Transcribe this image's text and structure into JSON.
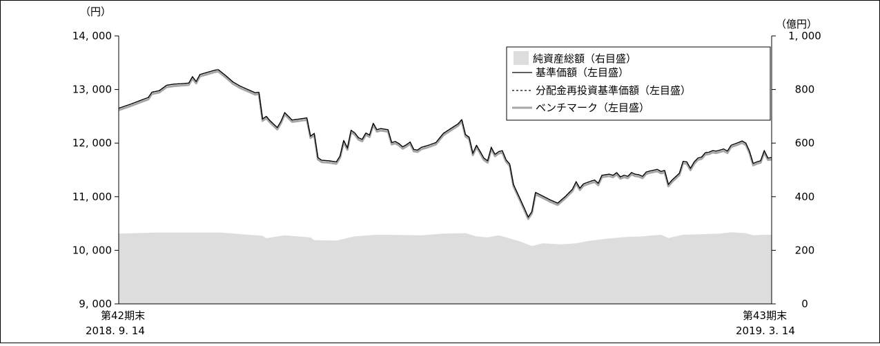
{
  "chart_data": {
    "type": "line",
    "left_axis": {
      "unit": "（円）",
      "min": 9000,
      "max": 14000,
      "ticks": [
        9000,
        10000,
        11000,
        12000,
        13000,
        14000
      ],
      "tick_labels": [
        "9, 000",
        "10, 000",
        "11, 000",
        "12, 000",
        "13, 000",
        "14, 000"
      ]
    },
    "right_axis": {
      "unit": "（億円）",
      "min": 0,
      "max": 1000,
      "ticks": [
        0,
        200,
        400,
        600,
        800,
        1000
      ],
      "tick_labels": [
        "0",
        "200",
        "400",
        "600",
        "800",
        "1, 000"
      ]
    },
    "x_axis": {
      "start": {
        "line1": "第42期末",
        "line2": "2018. 9. 14"
      },
      "end": {
        "line1": "第43期末",
        "line2": "2019. 3. 14"
      }
    },
    "legend": {
      "placement": "top-right",
      "items": [
        {
          "key": "net_assets",
          "label": "純資産総額（右目盛）"
        },
        {
          "key": "nav",
          "label": "基準価額（左目盛）"
        },
        {
          "key": "nav_reinvested",
          "label": "分配金再投資基準価額（左目盛）"
        },
        {
          "key": "benchmark",
          "label": "ベンチマーク（左目盛）"
        }
      ]
    },
    "colors": {
      "net_assets": "#dddddd",
      "nav": "#000000",
      "nav_reinvested": "#000000",
      "benchmark": "#a6a6a6"
    },
    "series": {
      "nav": [
        [
          0,
          12650
        ],
        [
          3,
          12720
        ],
        [
          6,
          12800
        ],
        [
          8,
          12850
        ],
        [
          9,
          12950
        ],
        [
          11,
          12980
        ],
        [
          13,
          13080
        ],
        [
          15,
          13100
        ],
        [
          17,
          13110
        ],
        [
          19,
          13120
        ],
        [
          20,
          13240
        ],
        [
          21,
          13150
        ],
        [
          22,
          13280
        ],
        [
          24,
          13320
        ],
        [
          26,
          13360
        ],
        [
          27,
          13370
        ],
        [
          29,
          13260
        ],
        [
          31,
          13140
        ],
        [
          33,
          13060
        ],
        [
          35,
          13000
        ],
        [
          37,
          12940
        ],
        [
          38,
          12950
        ],
        [
          39,
          12450
        ],
        [
          40,
          12500
        ],
        [
          41,
          12420
        ],
        [
          43,
          12290
        ],
        [
          44,
          12410
        ],
        [
          45,
          12570
        ],
        [
          46,
          12500
        ],
        [
          47,
          12430
        ],
        [
          49,
          12450
        ],
        [
          51,
          12470
        ],
        [
          52,
          12130
        ],
        [
          53,
          12180
        ],
        [
          54,
          11730
        ],
        [
          55,
          11680
        ],
        [
          57,
          11670
        ],
        [
          59,
          11650
        ],
        [
          60,
          11760
        ],
        [
          61,
          12050
        ],
        [
          62,
          11910
        ],
        [
          63,
          12240
        ],
        [
          64,
          12190
        ],
        [
          65,
          12100
        ],
        [
          66,
          12070
        ],
        [
          67,
          12190
        ],
        [
          68,
          12150
        ],
        [
          69,
          12370
        ],
        [
          70,
          12250
        ],
        [
          71,
          12270
        ],
        [
          73,
          12250
        ],
        [
          74,
          12010
        ],
        [
          75,
          12030
        ],
        [
          76,
          11990
        ],
        [
          77,
          11930
        ],
        [
          78,
          11970
        ],
        [
          79,
          12020
        ],
        [
          80,
          11880
        ],
        [
          81,
          11870
        ],
        [
          82,
          11920
        ],
        [
          84,
          11960
        ],
        [
          86,
          12010
        ],
        [
          88,
          12180
        ],
        [
          90,
          12270
        ],
        [
          92,
          12360
        ],
        [
          93,
          12440
        ],
        [
          94,
          12160
        ],
        [
          95,
          12110
        ],
        [
          96,
          11810
        ],
        [
          97,
          11960
        ],
        [
          98,
          11840
        ],
        [
          99,
          11720
        ],
        [
          100,
          11670
        ],
        [
          101,
          11920
        ],
        [
          102,
          11790
        ],
        [
          103,
          11840
        ],
        [
          104,
          11860
        ],
        [
          105,
          11690
        ],
        [
          106,
          11610
        ],
        [
          107,
          11230
        ],
        [
          109,
          10930
        ],
        [
          110,
          10780
        ],
        [
          111,
          10620
        ],
        [
          112,
          10720
        ],
        [
          113,
          11080
        ],
        [
          115,
          11010
        ],
        [
          117,
          10940
        ],
        [
          119,
          10880
        ],
        [
          121,
          11000
        ],
        [
          123,
          11140
        ],
        [
          124,
          11280
        ],
        [
          125,
          11160
        ],
        [
          126,
          11240
        ],
        [
          128,
          11290
        ],
        [
          129,
          11310
        ],
        [
          130,
          11250
        ],
        [
          131,
          11400
        ],
        [
          133,
          11420
        ],
        [
          134,
          11400
        ],
        [
          135,
          11450
        ],
        [
          136,
          11370
        ],
        [
          137,
          11400
        ],
        [
          138,
          11380
        ],
        [
          139,
          11450
        ],
        [
          140,
          11420
        ],
        [
          141,
          11410
        ],
        [
          142,
          11380
        ],
        [
          143,
          11460
        ],
        [
          144,
          11480
        ],
        [
          146,
          11510
        ],
        [
          147,
          11470
        ],
        [
          148,
          11490
        ],
        [
          149,
          11230
        ],
        [
          150,
          11310
        ],
        [
          152,
          11440
        ],
        [
          153,
          11660
        ],
        [
          154,
          11650
        ],
        [
          155,
          11530
        ],
        [
          156,
          11650
        ],
        [
          157,
          11720
        ],
        [
          158,
          11740
        ],
        [
          159,
          11820
        ],
        [
          160,
          11830
        ],
        [
          161,
          11860
        ],
        [
          162,
          11850
        ],
        [
          163,
          11870
        ],
        [
          164,
          11890
        ],
        [
          165,
          11850
        ],
        [
          166,
          11960
        ],
        [
          168,
          12010
        ],
        [
          169,
          12040
        ],
        [
          170,
          12000
        ],
        [
          171,
          11850
        ],
        [
          172,
          11620
        ],
        [
          173,
          11650
        ],
        [
          174,
          11670
        ],
        [
          175,
          11860
        ],
        [
          176,
          11720
        ],
        [
          177,
          11730
        ]
      ],
      "benchmark_offset": -35,
      "net_assets": [
        [
          0,
          262
        ],
        [
          10,
          266
        ],
        [
          20,
          266
        ],
        [
          28,
          266
        ],
        [
          35,
          258
        ],
        [
          39,
          254
        ],
        [
          40,
          245
        ],
        [
          45,
          256
        ],
        [
          52,
          248
        ],
        [
          53,
          238
        ],
        [
          59,
          236
        ],
        [
          64,
          252
        ],
        [
          70,
          258
        ],
        [
          76,
          257
        ],
        [
          82,
          256
        ],
        [
          88,
          262
        ],
        [
          94,
          264
        ],
        [
          97,
          252
        ],
        [
          100,
          248
        ],
        [
          103,
          256
        ],
        [
          106,
          244
        ],
        [
          109,
          232
        ],
        [
          112,
          216
        ],
        [
          115,
          226
        ],
        [
          120,
          222
        ],
        [
          124,
          226
        ],
        [
          128,
          236
        ],
        [
          133,
          244
        ],
        [
          137,
          249
        ],
        [
          142,
          252
        ],
        [
          147,
          258
        ],
        [
          149,
          246
        ],
        [
          153,
          258
        ],
        [
          158,
          260
        ],
        [
          163,
          262
        ],
        [
          166,
          267
        ],
        [
          170,
          264
        ],
        [
          172,
          256
        ],
        [
          175,
          258
        ],
        [
          177,
          258
        ]
      ]
    }
  }
}
